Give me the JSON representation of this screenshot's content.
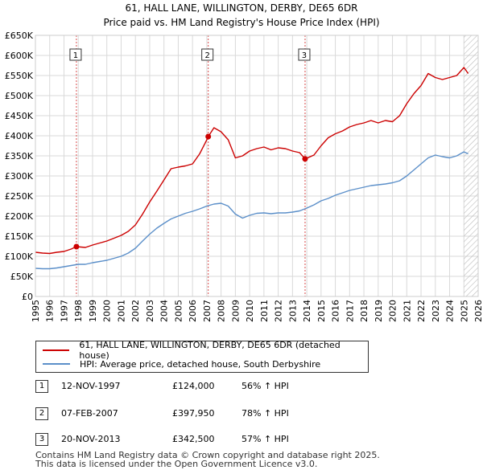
{
  "chart_data": {
    "type": "line",
    "title": "61, HALL LANE, WILLINGTON, DERBY, DE65 6DR",
    "subtitle": "Price paid vs. HM Land Registry's House Price Index (HPI)",
    "xlim": [
      1995,
      2026
    ],
    "ylim": [
      0,
      650000
    ],
    "x_ticks": [
      "1995",
      "1996",
      "1997",
      "1998",
      "1999",
      "2000",
      "2001",
      "2002",
      "2003",
      "2004",
      "2005",
      "2006",
      "2007",
      "2008",
      "2009",
      "2010",
      "2011",
      "2012",
      "2013",
      "2014",
      "2015",
      "2016",
      "2017",
      "2018",
      "2019",
      "2020",
      "2021",
      "2022",
      "2023",
      "2024",
      "2025",
      "2026"
    ],
    "y_ticks": [
      "£0",
      "£50K",
      "£100K",
      "£150K",
      "£200K",
      "£250K",
      "£300K",
      "£350K",
      "£400K",
      "£450K",
      "£500K",
      "£550K",
      "£600K",
      "£650K"
    ],
    "grid": true,
    "series": [
      {
        "name": "61, HALL LANE, WILLINGTON, DERBY, DE65 6DR (detached house)",
        "color": "#cc0000",
        "x": [
          1995.0,
          1995.5,
          1996.0,
          1996.5,
          1997.0,
          1997.5,
          1997.87,
          1998.5,
          1999.0,
          1999.5,
          2000.0,
          2000.5,
          2001.0,
          2001.5,
          2002.0,
          2002.5,
          2003.0,
          2003.5,
          2004.0,
          2004.5,
          2005.0,
          2005.5,
          2006.0,
          2006.5,
          2007.0,
          2007.1,
          2007.5,
          2008.0,
          2008.5,
          2009.0,
          2009.5,
          2010.0,
          2010.5,
          2011.0,
          2011.5,
          2012.0,
          2012.5,
          2013.0,
          2013.5,
          2013.88,
          2014.5,
          2015.0,
          2015.5,
          2016.0,
          2016.5,
          2017.0,
          2017.5,
          2018.0,
          2018.5,
          2019.0,
          2019.5,
          2020.0,
          2020.5,
          2021.0,
          2021.5,
          2022.0,
          2022.5,
          2023.0,
          2023.5,
          2024.0,
          2024.5,
          2025.0,
          2025.3
        ],
        "y": [
          110000,
          108000,
          107000,
          110000,
          112000,
          118000,
          124000,
          122000,
          128000,
          133000,
          138000,
          145000,
          152000,
          162000,
          178000,
          205000,
          235000,
          262000,
          290000,
          318000,
          322000,
          325000,
          330000,
          355000,
          390000,
          397950,
          420000,
          410000,
          390000,
          345000,
          350000,
          362000,
          368000,
          372000,
          365000,
          370000,
          368000,
          362000,
          358000,
          342500,
          352000,
          375000,
          395000,
          405000,
          412000,
          422000,
          428000,
          432000,
          438000,
          432000,
          438000,
          435000,
          450000,
          480000,
          505000,
          525000,
          555000,
          545000,
          540000,
          545000,
          550000,
          570000,
          555000
        ]
      },
      {
        "name": "HPI: Average price, detached house, South Derbyshire",
        "color": "#5b8fc9",
        "x": [
          1995.0,
          1995.5,
          1996.0,
          1996.5,
          1997.0,
          1997.5,
          1998.0,
          1998.5,
          1999.0,
          1999.5,
          2000.0,
          2000.5,
          2001.0,
          2001.5,
          2002.0,
          2002.5,
          2003.0,
          2003.5,
          2004.0,
          2004.5,
          2005.0,
          2005.5,
          2006.0,
          2006.5,
          2007.0,
          2007.5,
          2008.0,
          2008.5,
          2009.0,
          2009.5,
          2010.0,
          2010.5,
          2011.0,
          2011.5,
          2012.0,
          2012.5,
          2013.0,
          2013.5,
          2014.0,
          2014.5,
          2015.0,
          2015.5,
          2016.0,
          2016.5,
          2017.0,
          2017.5,
          2018.0,
          2018.5,
          2019.0,
          2019.5,
          2020.0,
          2020.5,
          2021.0,
          2021.5,
          2022.0,
          2022.5,
          2023.0,
          2023.5,
          2024.0,
          2024.5,
          2025.0,
          2025.3
        ],
        "y": [
          70000,
          69000,
          69000,
          71000,
          74000,
          77000,
          80000,
          80000,
          84000,
          87000,
          90000,
          95000,
          100000,
          108000,
          120000,
          138000,
          155000,
          170000,
          182000,
          193000,
          200000,
          207000,
          212000,
          218000,
          225000,
          230000,
          232000,
          225000,
          205000,
          195000,
          202000,
          207000,
          208000,
          206000,
          208000,
          208000,
          210000,
          213000,
          220000,
          228000,
          238000,
          244000,
          252000,
          258000,
          264000,
          268000,
          272000,
          276000,
          278000,
          280000,
          283000,
          288000,
          300000,
          315000,
          330000,
          345000,
          352000,
          348000,
          345000,
          350000,
          360000,
          355000
        ]
      }
    ],
    "annotations": [
      {
        "label": "1",
        "x": 1997.87,
        "y": 124000
      },
      {
        "label": "2",
        "x": 2007.1,
        "y": 397950
      },
      {
        "label": "3",
        "x": 2013.88,
        "y": 342500
      }
    ],
    "future_hatch_from": 2025.0
  },
  "legend": {
    "items": [
      {
        "label": "61, HALL LANE, WILLINGTON, DERBY, DE65 6DR (detached house)",
        "color": "#cc0000"
      },
      {
        "label": "HPI: Average price, detached house, South Derbyshire",
        "color": "#5b8fc9"
      }
    ]
  },
  "transactions": [
    {
      "num": "1",
      "date": "12-NOV-1997",
      "price": "£124,000",
      "hpi": "56% ↑ HPI"
    },
    {
      "num": "2",
      "date": "07-FEB-2007",
      "price": "£397,950",
      "hpi": "78% ↑ HPI"
    },
    {
      "num": "3",
      "date": "20-NOV-2013",
      "price": "£342,500",
      "hpi": "57% ↑ HPI"
    }
  ],
  "footer": {
    "line1": "Contains HM Land Registry data © Crown copyright and database right 2025.",
    "line2": "This data is licensed under the Open Government Licence v3.0."
  }
}
